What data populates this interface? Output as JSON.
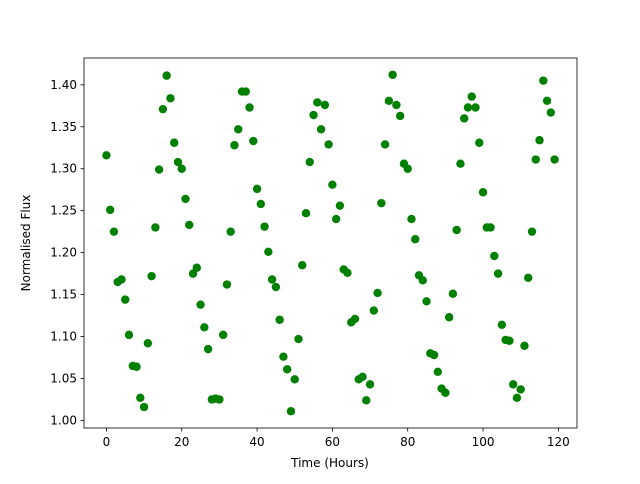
{
  "chart_data": {
    "type": "scatter",
    "x_label": "Time (Hours)",
    "y_label": "Normalised Flux",
    "color": "#008000",
    "x": [
      0,
      1,
      2,
      3,
      4,
      5,
      6,
      7,
      8,
      9,
      10,
      11,
      12,
      13,
      14,
      15,
      16,
      17,
      18,
      19,
      20,
      21,
      22,
      23,
      24,
      25,
      26,
      27,
      28,
      29,
      30,
      31,
      32,
      33,
      34,
      35,
      36,
      37,
      38,
      39,
      40,
      41,
      42,
      43,
      44,
      45,
      46,
      47,
      48,
      49,
      50,
      51,
      52,
      53,
      54,
      55,
      56,
      57,
      58,
      59,
      60,
      61,
      62,
      63,
      64,
      65,
      66,
      67,
      68,
      69,
      70,
      71,
      72,
      73,
      74,
      75,
      76,
      77,
      78,
      79,
      80,
      81,
      82,
      83,
      84,
      85,
      86,
      87,
      88,
      89,
      90,
      91,
      92,
      93,
      94,
      95,
      96,
      97,
      98,
      99,
      100,
      101,
      102,
      103,
      104,
      105,
      106,
      107,
      108,
      109,
      110,
      111,
      112,
      113,
      114,
      115,
      116,
      117,
      118,
      119
    ],
    "values": [
      1.316,
      1.251,
      1.225,
      1.165,
      1.168,
      1.144,
      1.102,
      1.065,
      1.064,
      1.027,
      1.016,
      1.092,
      1.172,
      1.23,
      1.299,
      1.371,
      1.411,
      1.384,
      1.331,
      1.308,
      1.3,
      1.264,
      1.233,
      1.175,
      1.182,
      1.138,
      1.111,
      1.085,
      1.025,
      1.026,
      1.025,
      1.102,
      1.162,
      1.225,
      1.328,
      1.347,
      1.392,
      1.392,
      1.373,
      1.333,
      1.276,
      1.258,
      1.231,
      1.201,
      1.168,
      1.159,
      1.12,
      1.076,
      1.061,
      1.011,
      1.049,
      1.097,
      1.185,
      1.247,
      1.308,
      1.364,
      1.379,
      1.347,
      1.376,
      1.329,
      1.281,
      1.24,
      1.256,
      1.18,
      1.176,
      1.117,
      1.121,
      1.049,
      1.052,
      1.024,
      1.043,
      1.131,
      1.152,
      1.259,
      1.329,
      1.381,
      1.412,
      1.376,
      1.363,
      1.306,
      1.3,
      1.24,
      1.216,
      1.173,
      1.167,
      1.142,
      1.08,
      1.078,
      1.058,
      1.038,
      1.033,
      1.123,
      1.151,
      1.227,
      1.306,
      1.36,
      1.373,
      1.386,
      1.373,
      1.331,
      1.272,
      1.23,
      1.23,
      1.196,
      1.175,
      1.114,
      1.096,
      1.095,
      1.043,
      1.027,
      1.037,
      1.089,
      1.17,
      1.225,
      1.311,
      1.334,
      1.405,
      1.381,
      1.367,
      1.311
    ],
    "xlim": [
      -5.95,
      124.95
    ],
    "ylim": [
      0.991,
      1.432
    ],
    "xticks": [
      0,
      20,
      40,
      60,
      80,
      100,
      120
    ],
    "yticks": [
      {
        "value": 1.0,
        "label": "1.00"
      },
      {
        "value": 1.05,
        "label": "1.05"
      },
      {
        "value": 1.1,
        "label": "1.10"
      },
      {
        "value": 1.15,
        "label": "1.15"
      },
      {
        "value": 1.2,
        "label": "1.20"
      },
      {
        "value": 1.25,
        "label": "1.25"
      },
      {
        "value": 1.3,
        "label": "1.30"
      },
      {
        "value": 1.35,
        "label": "1.35"
      },
      {
        "value": 1.4,
        "label": "1.40"
      }
    ]
  }
}
